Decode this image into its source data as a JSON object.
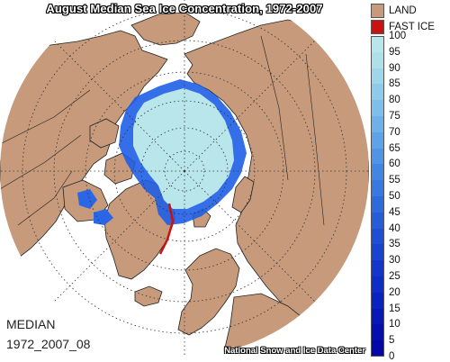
{
  "title": "August Median Sea Ice Concentration, 1972-2007",
  "label_median": "MEDIAN",
  "label_period": "1972_2007_08",
  "credit": "National Snow and Ice Data Center",
  "legend": {
    "categories": [
      {
        "label": "LAND",
        "color": "#c69a7a"
      },
      {
        "label": "FAST ICE",
        "color": "#cc1111"
      }
    ],
    "ticks": [
      "100",
      "95",
      "90",
      "85",
      "80",
      "75",
      "70",
      "65",
      "60",
      "55",
      "50",
      "45",
      "40",
      "35",
      "30",
      "25",
      "20",
      "15",
      "10",
      "5",
      "0"
    ],
    "ramp_colors": [
      "#b8e6ea",
      "#aee0ea",
      "#9ed6ea",
      "#8ecaea",
      "#7ebeea",
      "#6eb0ea",
      "#5ea2e8",
      "#5094e6",
      "#4286e4",
      "#3878e0",
      "#2e6adc",
      "#265cd8",
      "#1e4ed4",
      "#1842d0",
      "#1236cc",
      "#0e2cc6",
      "#0a22c0",
      "#0818b8",
      "#060eb0",
      "#0408a8"
    ]
  },
  "colors": {
    "land": "#c69a7a",
    "ocean": "#ffffff",
    "ice_high": "#b8e6ea",
    "ice_low": "#1e5ee6",
    "fast_ice": "#cc1111"
  }
}
